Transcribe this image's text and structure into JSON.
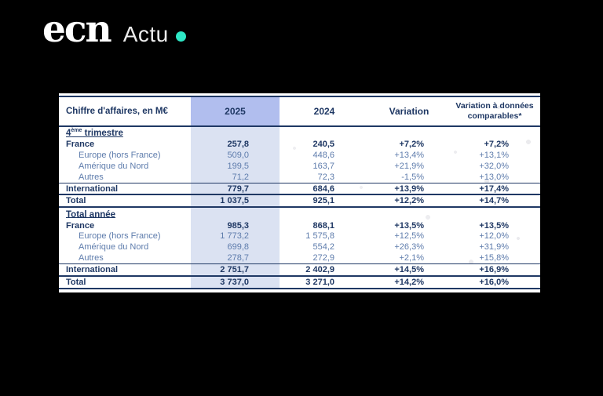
{
  "brand": {
    "name": "ecn",
    "section": "Actu"
  },
  "colors": {
    "background": "#000000",
    "accent_dot": "#2EE8C6",
    "table_navy": "#1F3864",
    "highlight_header": "#B1BEEE",
    "highlight_column": "#DBE2F2",
    "subrow_text": "#5E7CAC",
    "card_background": "#FFFFFF"
  },
  "chart_data": {
    "type": "table",
    "title": "Chiffre d'affaires, en M€",
    "columns": [
      "Chiffre d'affaires, en M€",
      "2025",
      "2024",
      "Variation",
      "Variation à données comparables*"
    ],
    "sections": [
      {
        "title": "4ème trimestre",
        "title_base": "4",
        "title_sup": "ème",
        "title_rest": " trimestre",
        "rows": [
          [
            "France",
            "257,8",
            "240,5",
            "+7,2%",
            "+7,2%"
          ],
          [
            "Europe (hors France)",
            "509,0",
            "448,6",
            "+13,4%",
            "+13,1%"
          ],
          [
            "Amérique du Nord",
            "199,5",
            "163,7",
            "+21,9%",
            "+32,0%"
          ],
          [
            "Autres",
            "71,2",
            "72,3",
            "-1,5%",
            "+13,0%"
          ],
          [
            "International",
            "779,7",
            "684,6",
            "+13,9%",
            "+17,4%"
          ],
          [
            "Total",
            "1 037,5",
            "925,1",
            "+12,2%",
            "+14,7%"
          ]
        ]
      },
      {
        "title": "Total année",
        "title_base": "Total année",
        "title_sup": "",
        "title_rest": "",
        "rows": [
          [
            "France",
            "985,3",
            "868,1",
            "+13,5%",
            "+13,5%"
          ],
          [
            "Europe (hors France)",
            "1 773,2",
            "1 575,8",
            "+12,5%",
            "+12,0%"
          ],
          [
            "Amérique du Nord",
            "699,8",
            "554,2",
            "+26,3%",
            "+31,9%"
          ],
          [
            "Autres",
            "278,7",
            "272,9",
            "+2,1%",
            "+15,8%"
          ],
          [
            "International",
            "2 751,7",
            "2 402,9",
            "+14,5%",
            "+16,9%"
          ],
          [
            "Total",
            "3 737,0",
            "3 271,0",
            "+14,2%",
            "+16,0%"
          ]
        ]
      }
    ]
  }
}
